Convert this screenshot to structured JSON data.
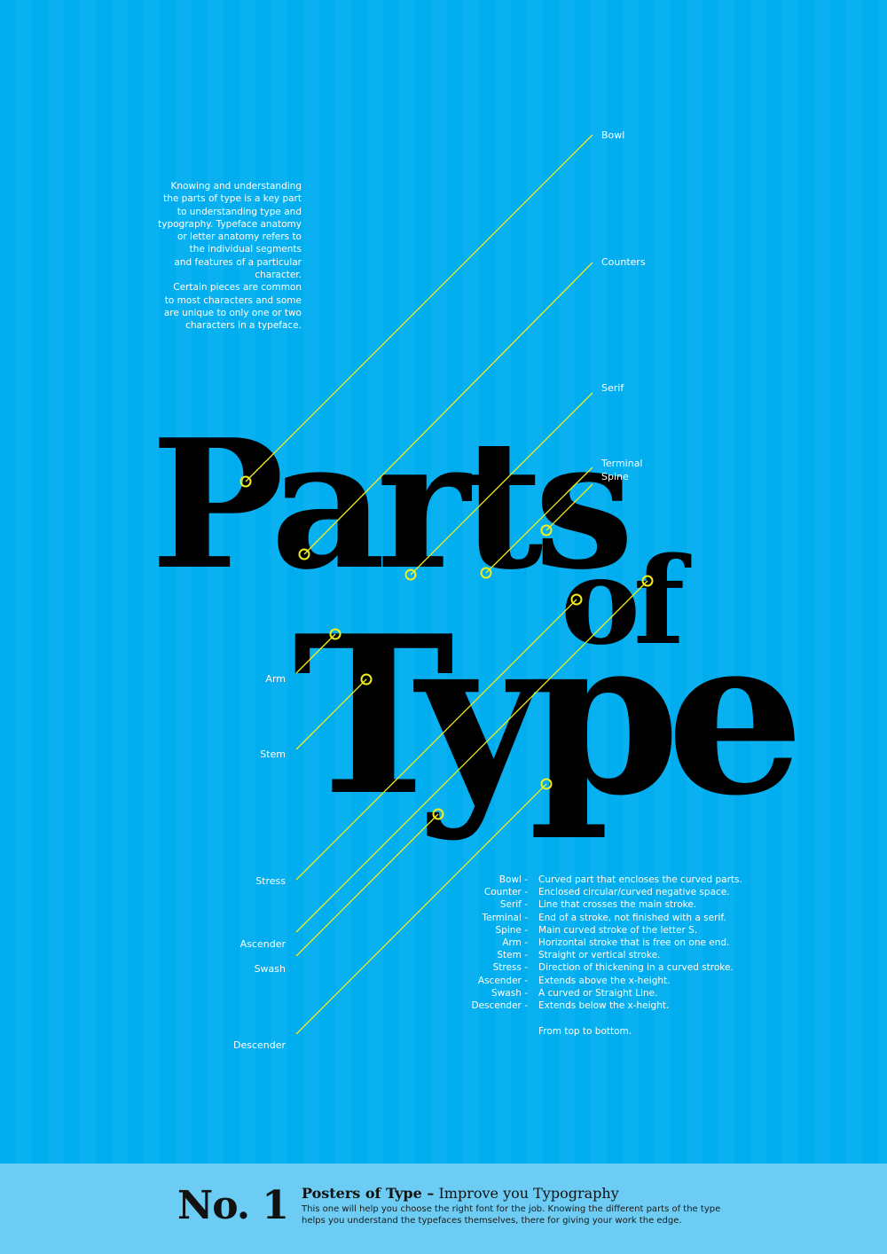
{
  "intro_text": "Knowing and understanding\nthe parts of type is a key part\nto understanding type and\ntypography. Typeface anatomy\nor letter anatomy refers to\nthe individual segments\nand features of a particular\ncharacter.\nCertain pieces are common\nto most characters and some\nare unique to only one or two\ncharacters in a typeface.",
  "headline": {
    "line1": "Parts",
    "line2": "of",
    "line3": "Type"
  },
  "labels": {
    "bowl": "Bowl",
    "counters": "Counters",
    "serif": "Serif",
    "terminal": "Terminal",
    "spine": "Spine",
    "arm": "Arm",
    "stem": "Stem",
    "stress": "Stress",
    "ascender": "Ascender",
    "swash": "Swash",
    "descender": "Descender"
  },
  "legend": {
    "items": [
      {
        "term": "Bowl -",
        "definition": "Curved part that encloses the curved parts."
      },
      {
        "term": "Counter -",
        "definition": "Enclosed circular/curved negative space."
      },
      {
        "term": "Serif -",
        "definition": "Line that crosses the main stroke."
      },
      {
        "term": "Terminal -",
        "definition": "End of a stroke, not finished with a serif."
      },
      {
        "term": "Spine -",
        "definition": "Main curved stroke of the letter S."
      },
      {
        "term": "Arm -",
        "definition": "Horizontal stroke that is free on one end."
      },
      {
        "term": "Stem -",
        "definition": "Straight or vertical stroke."
      },
      {
        "term": "Stress -",
        "definition": "Direction of thickening in a curved stroke."
      },
      {
        "term": "Ascender -",
        "definition": "Extends above the x-height."
      },
      {
        "term": "Swash -",
        "definition": "A curved or Straight Line."
      },
      {
        "term": "Descender -",
        "definition": "Extends below the x-height."
      }
    ],
    "note": "From top to bottom."
  },
  "footer": {
    "number": "No. 1",
    "title_bold": "Posters of Type –",
    "title_rest": " Improve you Typography",
    "description": "This one will help you choose the right font for the job. Knowing the different parts of the type helps you understand the typefaces themselves, there for giving your work the edge."
  },
  "colors": {
    "background": "#00aeef",
    "footer_band": "#6dccf3",
    "leader_line": "#f2ee1c",
    "headline": "#000000"
  }
}
